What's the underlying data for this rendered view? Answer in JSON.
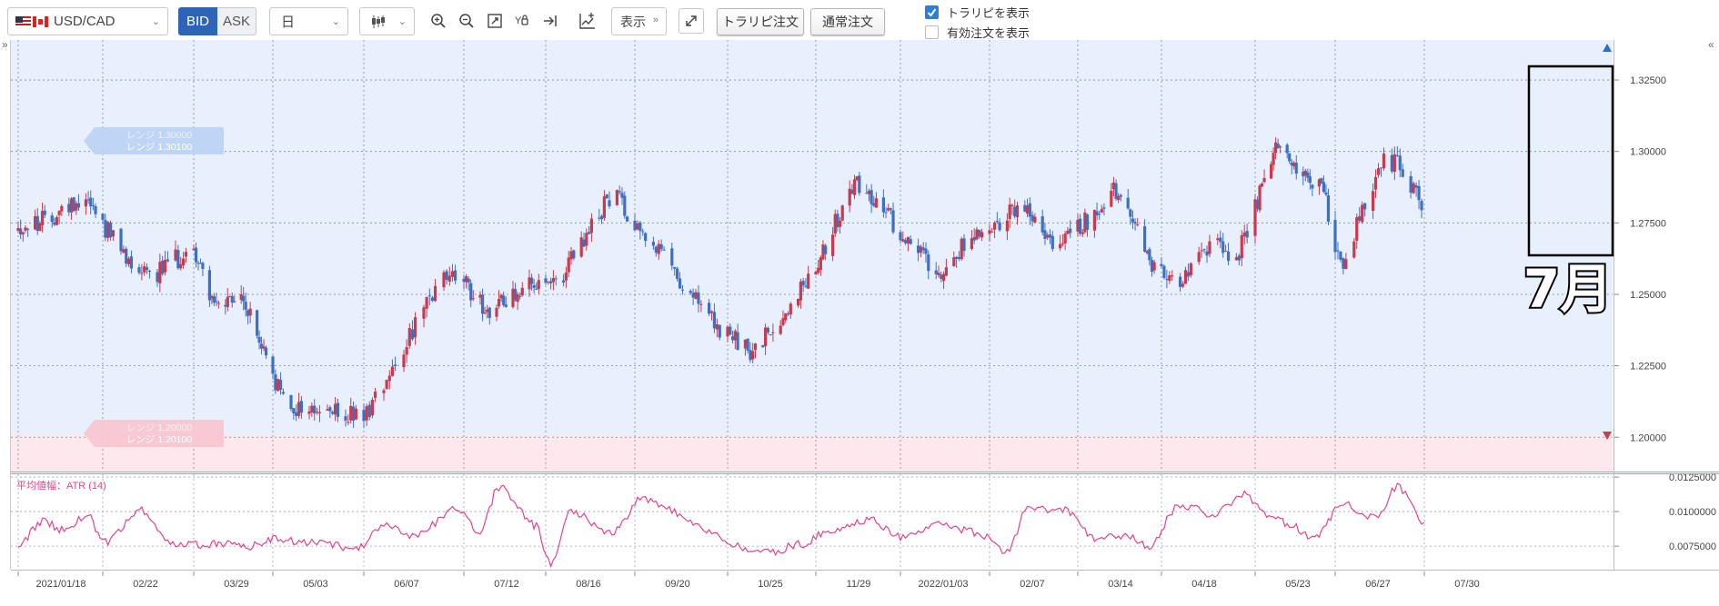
{
  "toolbar": {
    "symbol": "USD/CAD",
    "bid_label": "BID",
    "ask_label": "ASK",
    "period": "日",
    "display_label": "表示",
    "trap_order_label": "トラリピ注文",
    "normal_order_label": "通常注文",
    "show_trap_label": "トラリピを表示",
    "show_active_orders_label": "有効注文を表示",
    "show_trap_checked": true,
    "show_active_orders_checked": false
  },
  "colors": {
    "up_candle": "#c93a4e",
    "down_candle": "#3f6fc0",
    "atr_line": "#e0458b",
    "bid_accent": "#2e64b8",
    "upper_zone": "#e8f0fd",
    "lower_zone": "#fde9ed"
  },
  "icons": [
    "zoom-in-icon",
    "zoom-out-icon",
    "fit-icon",
    "y-scale-icon",
    "scroll-end-icon",
    "add-indicator-icon",
    "expand-icon",
    "candlestick-icon"
  ],
  "chart_data": [
    {
      "type": "candlestick",
      "ylim": [
        1.188,
        1.339
      ],
      "y_ticks": [
        "1.32500",
        "1.30000",
        "1.27500",
        "1.25000",
        "1.22500",
        "1.20000"
      ],
      "x_ticks": [
        "2021/01/18",
        "02/22",
        "03/29",
        "05/03",
        "06/07",
        "07/12",
        "08/16",
        "09/20",
        "10/25",
        "11/29",
        "2022/01/03",
        "02/07",
        "03/14",
        "04/18",
        "05/23",
        "06/27",
        "07/30"
      ],
      "range_labels": [
        {
          "zone": "upper",
          "lines": [
            "レンジ 1.30000",
            "レンジ 1.30100"
          ]
        },
        {
          "zone": "lower",
          "lines": [
            "レンジ 1.20000",
            "レンジ 1.20100"
          ]
        }
      ],
      "annotation": "7月",
      "x_anchors_days": [
        0,
        35,
        70,
        105,
        140,
        175,
        210,
        245,
        280,
        315,
        350,
        385,
        420,
        455,
        490,
        525,
        558
      ],
      "close_anchors": [
        1.273,
        1.276,
        1.285,
        1.262,
        1.258,
        1.266,
        1.245,
        1.248,
        1.211,
        1.207,
        1.236,
        1.258,
        1.244,
        1.253,
        1.252,
        1.27,
        1.286,
        1.27,
        1.238,
        1.229,
        1.246,
        1.266,
        1.29,
        1.276,
        1.258,
        1.272,
        1.28,
        1.266,
        1.278,
        1.287,
        1.26,
        1.252,
        1.27,
        1.26,
        1.283,
        1.302,
        1.286,
        1.258,
        1.283,
        1.296,
        1.288,
        1.305,
        1.294,
        1.28
      ],
      "close_anchor_days": [
        0,
        12,
        28,
        44,
        56,
        70,
        80,
        92,
        110,
        140,
        156,
        170,
        186,
        200,
        213,
        226,
        236,
        250,
        276,
        290,
        305,
        318,
        332,
        346,
        365,
        380,
        398,
        412,
        426,
        435,
        452,
        462,
        475,
        482,
        491,
        500,
        520,
        528,
        536,
        546,
        540,
        544,
        550,
        558
      ]
    },
    {
      "type": "line",
      "name": "平均値幅：ATR (14)",
      "ylim": [
        0.0058,
        0.0127
      ],
      "y_ticks": [
        "0.0125000",
        "0.0100000",
        "0.0075000"
      ],
      "anchor_days": [
        0,
        10,
        20,
        28,
        36,
        50,
        62,
        70,
        84,
        96,
        104,
        118,
        128,
        136,
        148,
        158,
        172,
        182,
        190,
        206,
        212,
        220,
        236,
        248,
        258,
        270,
        284,
        296,
        308,
        322,
        338,
        350,
        366,
        380,
        392,
        400,
        414,
        428,
        440,
        450,
        462,
        474,
        486,
        496,
        506,
        516,
        528,
        540,
        548,
        558
      ],
      "anchor_values": [
        0.0076,
        0.0093,
        0.0086,
        0.0098,
        0.0078,
        0.0101,
        0.0076,
        0.0076,
        0.0077,
        0.0075,
        0.008,
        0.0078,
        0.0076,
        0.0072,
        0.0089,
        0.0082,
        0.0102,
        0.0086,
        0.0118,
        0.009,
        0.0062,
        0.01,
        0.0085,
        0.011,
        0.0101,
        0.0088,
        0.0075,
        0.007,
        0.0076,
        0.0087,
        0.0094,
        0.0082,
        0.009,
        0.0085,
        0.007,
        0.0102,
        0.0101,
        0.008,
        0.0083,
        0.0075,
        0.0105,
        0.0098,
        0.0112,
        0.0096,
        0.009,
        0.008,
        0.0105,
        0.0095,
        0.0118,
        0.0092
      ]
    }
  ]
}
